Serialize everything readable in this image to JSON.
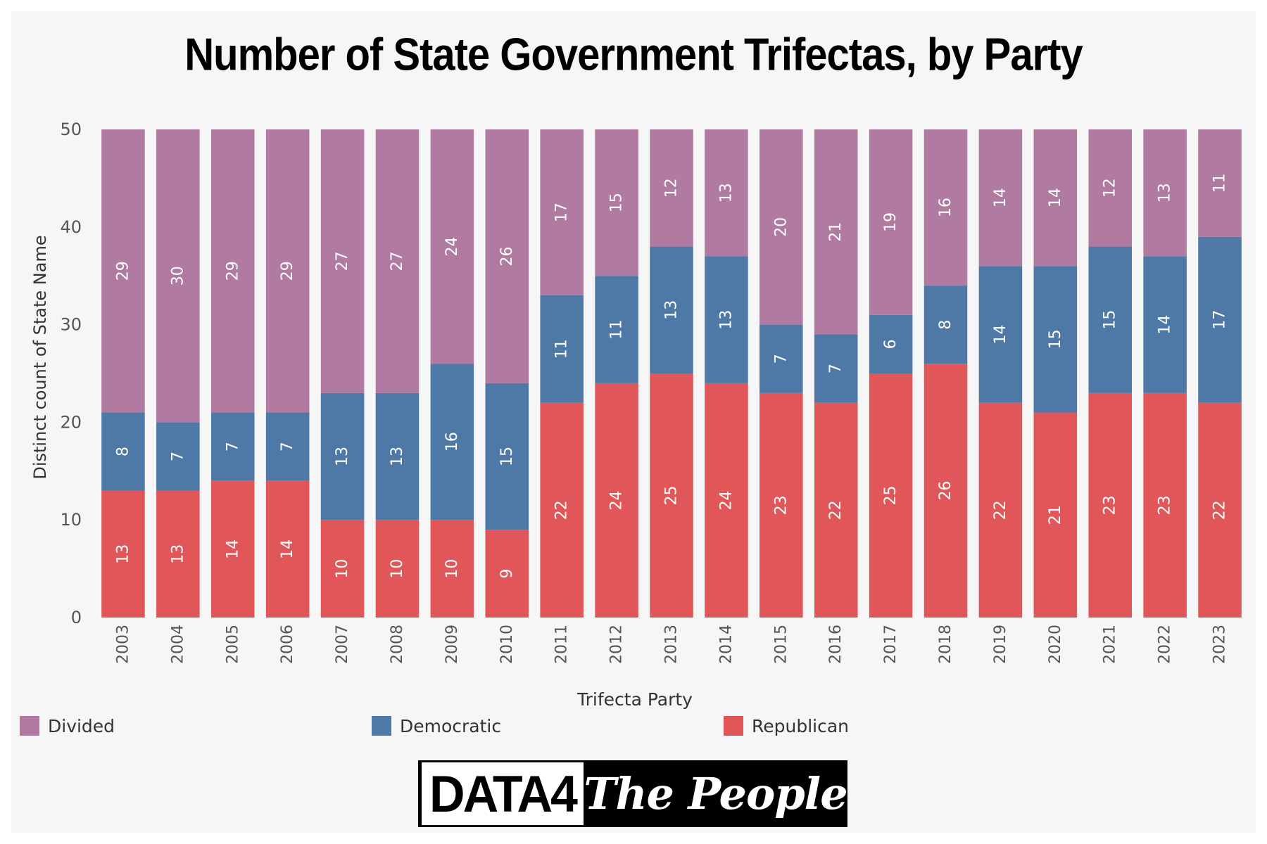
{
  "chart_data": {
    "type": "bar",
    "stacked": true,
    "title": "Number of State Government Trifectas, by Party",
    "xlabel": "Trifecta Party",
    "ylabel": "Distinct count of State Name",
    "ylim": [
      0,
      50
    ],
    "yticks": [
      0,
      10,
      20,
      30,
      40,
      50
    ],
    "grid": false,
    "legend_position": "bottom",
    "categories": [
      "2003",
      "2004",
      "2005",
      "2006",
      "2007",
      "2008",
      "2009",
      "2010",
      "2011",
      "2012",
      "2013",
      "2014",
      "2015",
      "2016",
      "2017",
      "2018",
      "2019",
      "2020",
      "2021",
      "2022",
      "2023"
    ],
    "series": [
      {
        "name": "Republican",
        "color": "#e15759",
        "values": [
          13,
          13,
          14,
          14,
          10,
          10,
          10,
          9,
          22,
          24,
          25,
          24,
          23,
          22,
          25,
          26,
          22,
          21,
          23,
          23,
          22
        ]
      },
      {
        "name": "Democratic",
        "color": "#4e79a7",
        "values": [
          8,
          7,
          7,
          7,
          13,
          13,
          16,
          15,
          11,
          11,
          13,
          13,
          7,
          7,
          6,
          8,
          14,
          15,
          15,
          14,
          17
        ]
      },
      {
        "name": "Divided",
        "color": "#b07aa1",
        "values": [
          29,
          30,
          29,
          29,
          27,
          27,
          24,
          26,
          17,
          15,
          12,
          13,
          20,
          21,
          19,
          16,
          14,
          14,
          12,
          13,
          11
        ]
      }
    ]
  },
  "legend": [
    {
      "label": "Divided",
      "color": "#b07aa1"
    },
    {
      "label": "Democratic",
      "color": "#4e79a7"
    },
    {
      "label": "Republican",
      "color": "#e15759"
    }
  ],
  "logo": {
    "left_text": "DATA4",
    "right_text": "The People"
  }
}
